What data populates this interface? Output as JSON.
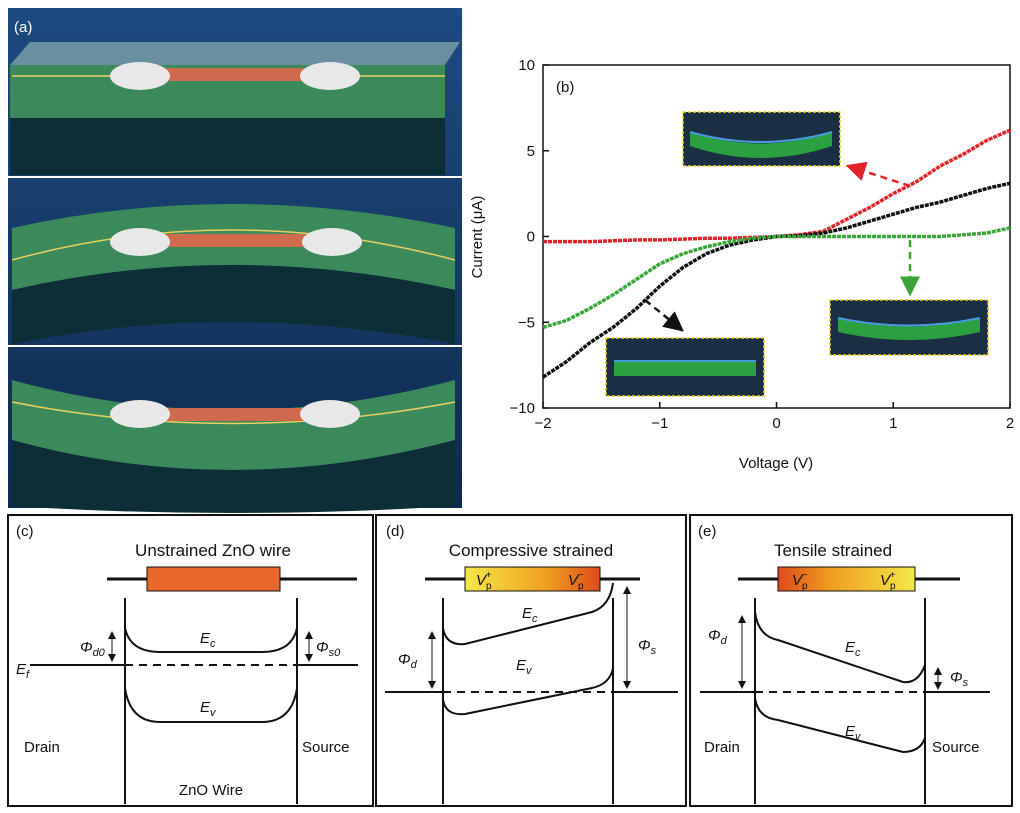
{
  "chart_data": {
    "type": "line",
    "panel_label": "(b)",
    "x_label": "Voltage (V)",
    "y_label": "Current (μA)",
    "x": [
      -2,
      -1.8,
      -1.6,
      -1.4,
      -1.2,
      -1,
      -0.8,
      -0.6,
      -0.4,
      -0.2,
      0,
      0.2,
      0.4,
      0.6,
      0.8,
      1,
      1.2,
      1.4,
      1.6,
      1.8,
      2
    ],
    "series": [
      {
        "color": "#e0242a",
        "values": [
          -0.3,
          -0.3,
          -0.3,
          -0.25,
          -0.2,
          -0.2,
          -0.15,
          -0.1,
          -0.1,
          -0.05,
          0,
          0.1,
          0.3,
          1.0,
          1.7,
          2.5,
          3.2,
          4.1,
          4.8,
          5.6,
          6.2
        ]
      },
      {
        "color": "#111111",
        "values": [
          -8.2,
          -7.3,
          -6.2,
          -5.3,
          -4.2,
          -2.9,
          -1.8,
          -1.0,
          -0.5,
          -0.2,
          0,
          0.05,
          0.2,
          0.5,
          0.9,
          1.3,
          1.7,
          2.0,
          2.4,
          2.8,
          3.1
        ]
      },
      {
        "color": "#3aa63a",
        "values": [
          -5.3,
          -4.9,
          -4.2,
          -3.4,
          -2.5,
          -1.6,
          -1.0,
          -0.6,
          -0.3,
          -0.1,
          0,
          0,
          0,
          0,
          0,
          0,
          0,
          0,
          0.1,
          0.2,
          0.5
        ]
      }
    ],
    "xlim": [
      -2,
      2
    ],
    "ylim": [
      -10,
      10
    ],
    "xticks": [
      {
        "value": -2,
        "label": "−2"
      },
      {
        "value": -1,
        "label": "−1"
      },
      0,
      1,
      2
    ],
    "yticks": [
      {
        "value": -10,
        "label": "−10"
      },
      {
        "value": -5,
        "label": "−5"
      },
      0,
      5,
      10
    ]
  },
  "panel_a": {
    "label": "(a)"
  },
  "panel_c": {
    "label": "(c)",
    "title": "Unstrained ZnO wire",
    "ef": {
      "main": "E",
      "sub": "f"
    },
    "phi_d0": {
      "main": "Φ",
      "sub": "d0"
    },
    "ec": {
      "main": "E",
      "sub": "c"
    },
    "phi_s0": {
      "main": "Φ",
      "sub": "s0"
    },
    "ev": {
      "main": "E",
      "sub": "v"
    },
    "drain": "Drain",
    "source": "Source",
    "wire": "ZnO Wire"
  },
  "panel_d": {
    "label": "(d)",
    "title": "Compressive strained",
    "vp_left": {
      "main": "V",
      "sub": "p",
      "sup": "+"
    },
    "vp_right": {
      "main": "V",
      "sub": "p",
      "sup": "−"
    },
    "phi_d": {
      "main": "Φ",
      "sub": "d"
    },
    "ec": {
      "main": "E",
      "sub": "c"
    },
    "phi_s": {
      "main": "Φ",
      "sub": "s"
    },
    "ev": {
      "main": "E",
      "sub": "v"
    }
  },
  "panel_e": {
    "label": "(e)",
    "title": "Tensile strained",
    "vp_left": {
      "main": "V",
      "sub": "p",
      "sup": "−"
    },
    "vp_right": {
      "main": "V",
      "sub": "p",
      "sup": "+"
    },
    "phi_d": {
      "main": "Φ",
      "sub": "d"
    },
    "ec": {
      "main": "E",
      "sub": "c"
    },
    "phi_s": {
      "main": "Φ",
      "sub": "s"
    },
    "ev": {
      "main": "E",
      "sub": "v"
    },
    "drain": "Drain",
    "source": "Source"
  }
}
